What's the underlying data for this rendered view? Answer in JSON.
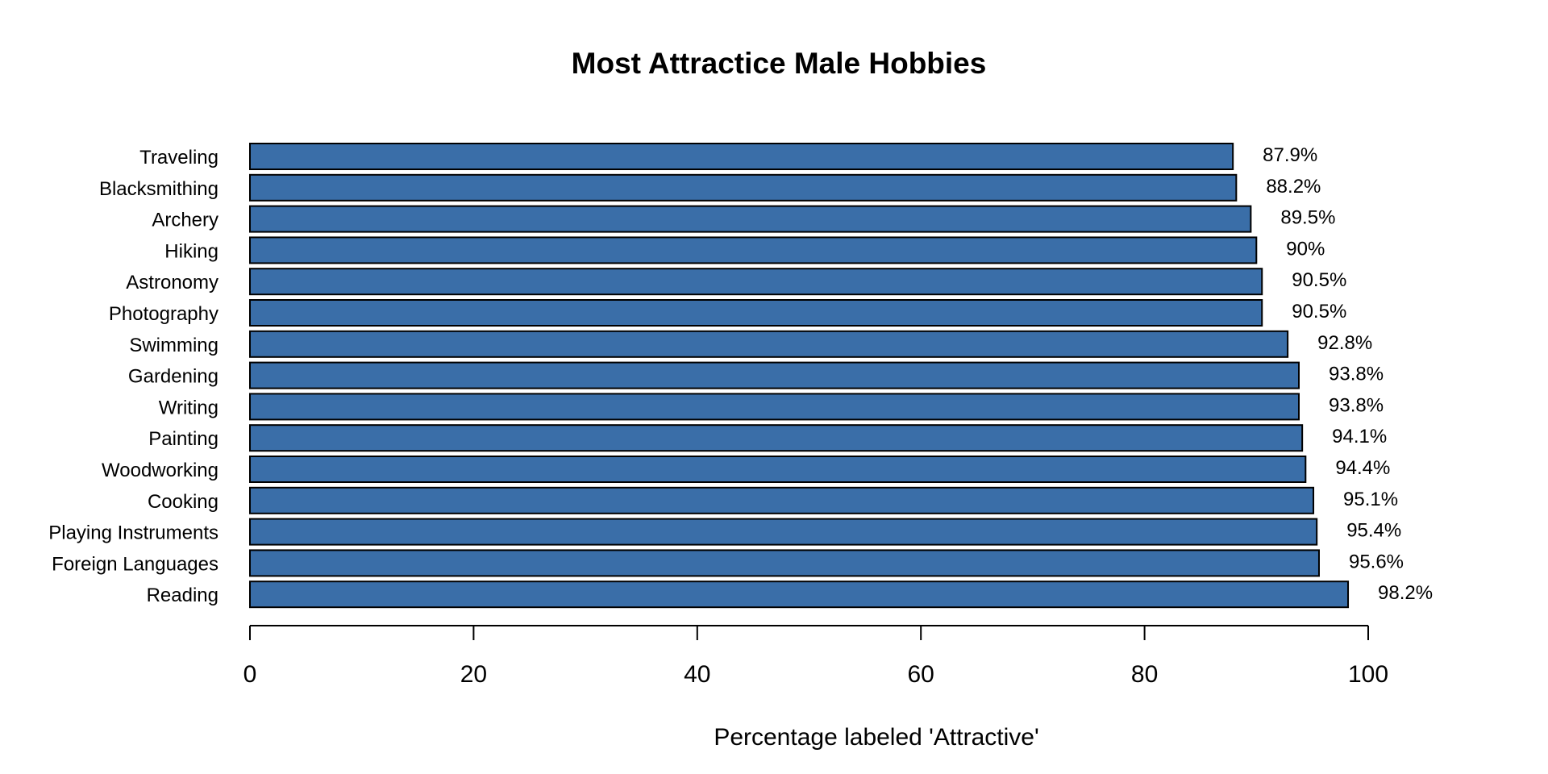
{
  "chart_data": {
    "type": "bar",
    "orientation": "horizontal",
    "title": "Most Attractice Male Hobbies",
    "xlabel": "Percentage labeled 'Attractive'",
    "ylabel": "",
    "xlim": [
      0,
      100
    ],
    "xticks": [
      0,
      20,
      40,
      60,
      80,
      100
    ],
    "grid": false,
    "bar_color": "#3A6EA8",
    "bar_edge_color": "#000000",
    "categories": [
      "Traveling",
      "Blacksmithing",
      "Archery",
      "Hiking",
      "Astronomy",
      "Photography",
      "Swimming",
      "Gardening",
      "Writing",
      "Painting",
      "Woodworking",
      "Cooking",
      "Playing Instruments",
      "Foreign Languages",
      "Reading"
    ],
    "values": [
      87.9,
      88.2,
      89.5,
      90,
      90.5,
      90.5,
      92.8,
      93.8,
      93.8,
      94.1,
      94.4,
      95.1,
      95.4,
      95.6,
      98.2
    ],
    "value_labels": [
      "87.9%",
      "88.2%",
      "89.5%",
      "90%",
      "90.5%",
      "90.5%",
      "92.8%",
      "93.8%",
      "93.8%",
      "94.1%",
      "94.4%",
      "95.1%",
      "95.4%",
      "95.6%",
      "98.2%"
    ]
  }
}
